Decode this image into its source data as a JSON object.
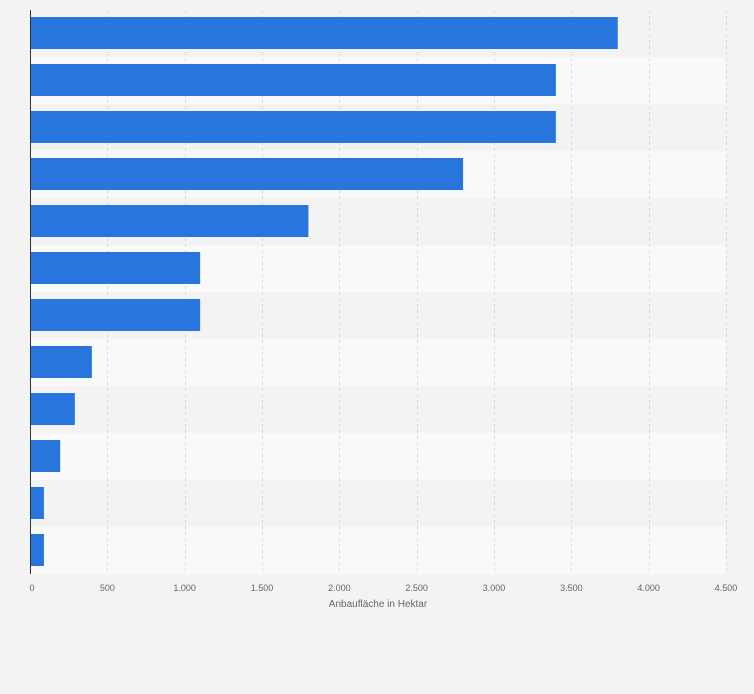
{
  "chart_data": {
    "type": "bar",
    "orientation": "horizontal",
    "categories": [
      "",
      "",
      "",
      "",
      "",
      "",
      "",
      "",
      "",
      "",
      "",
      ""
    ],
    "values": [
      3800,
      3400,
      3400,
      2800,
      1800,
      1100,
      1100,
      400,
      290,
      195,
      90,
      90
    ],
    "xlabel": "Anbaufläche in Hektar",
    "xlim": [
      0,
      4500
    ],
    "ticks": [
      0,
      500,
      1000,
      1500,
      2000,
      2500,
      3000,
      3500,
      4000,
      4500
    ],
    "tick_labels": [
      "0",
      "500",
      "1.000",
      "1.500",
      "2.000",
      "2.500",
      "3.000",
      "3.500",
      "4.000",
      "4.500"
    ],
    "grid": true,
    "bar_color": "#2876dd",
    "row_colors": [
      "#f3f3f3",
      "#f9f9f9"
    ]
  }
}
